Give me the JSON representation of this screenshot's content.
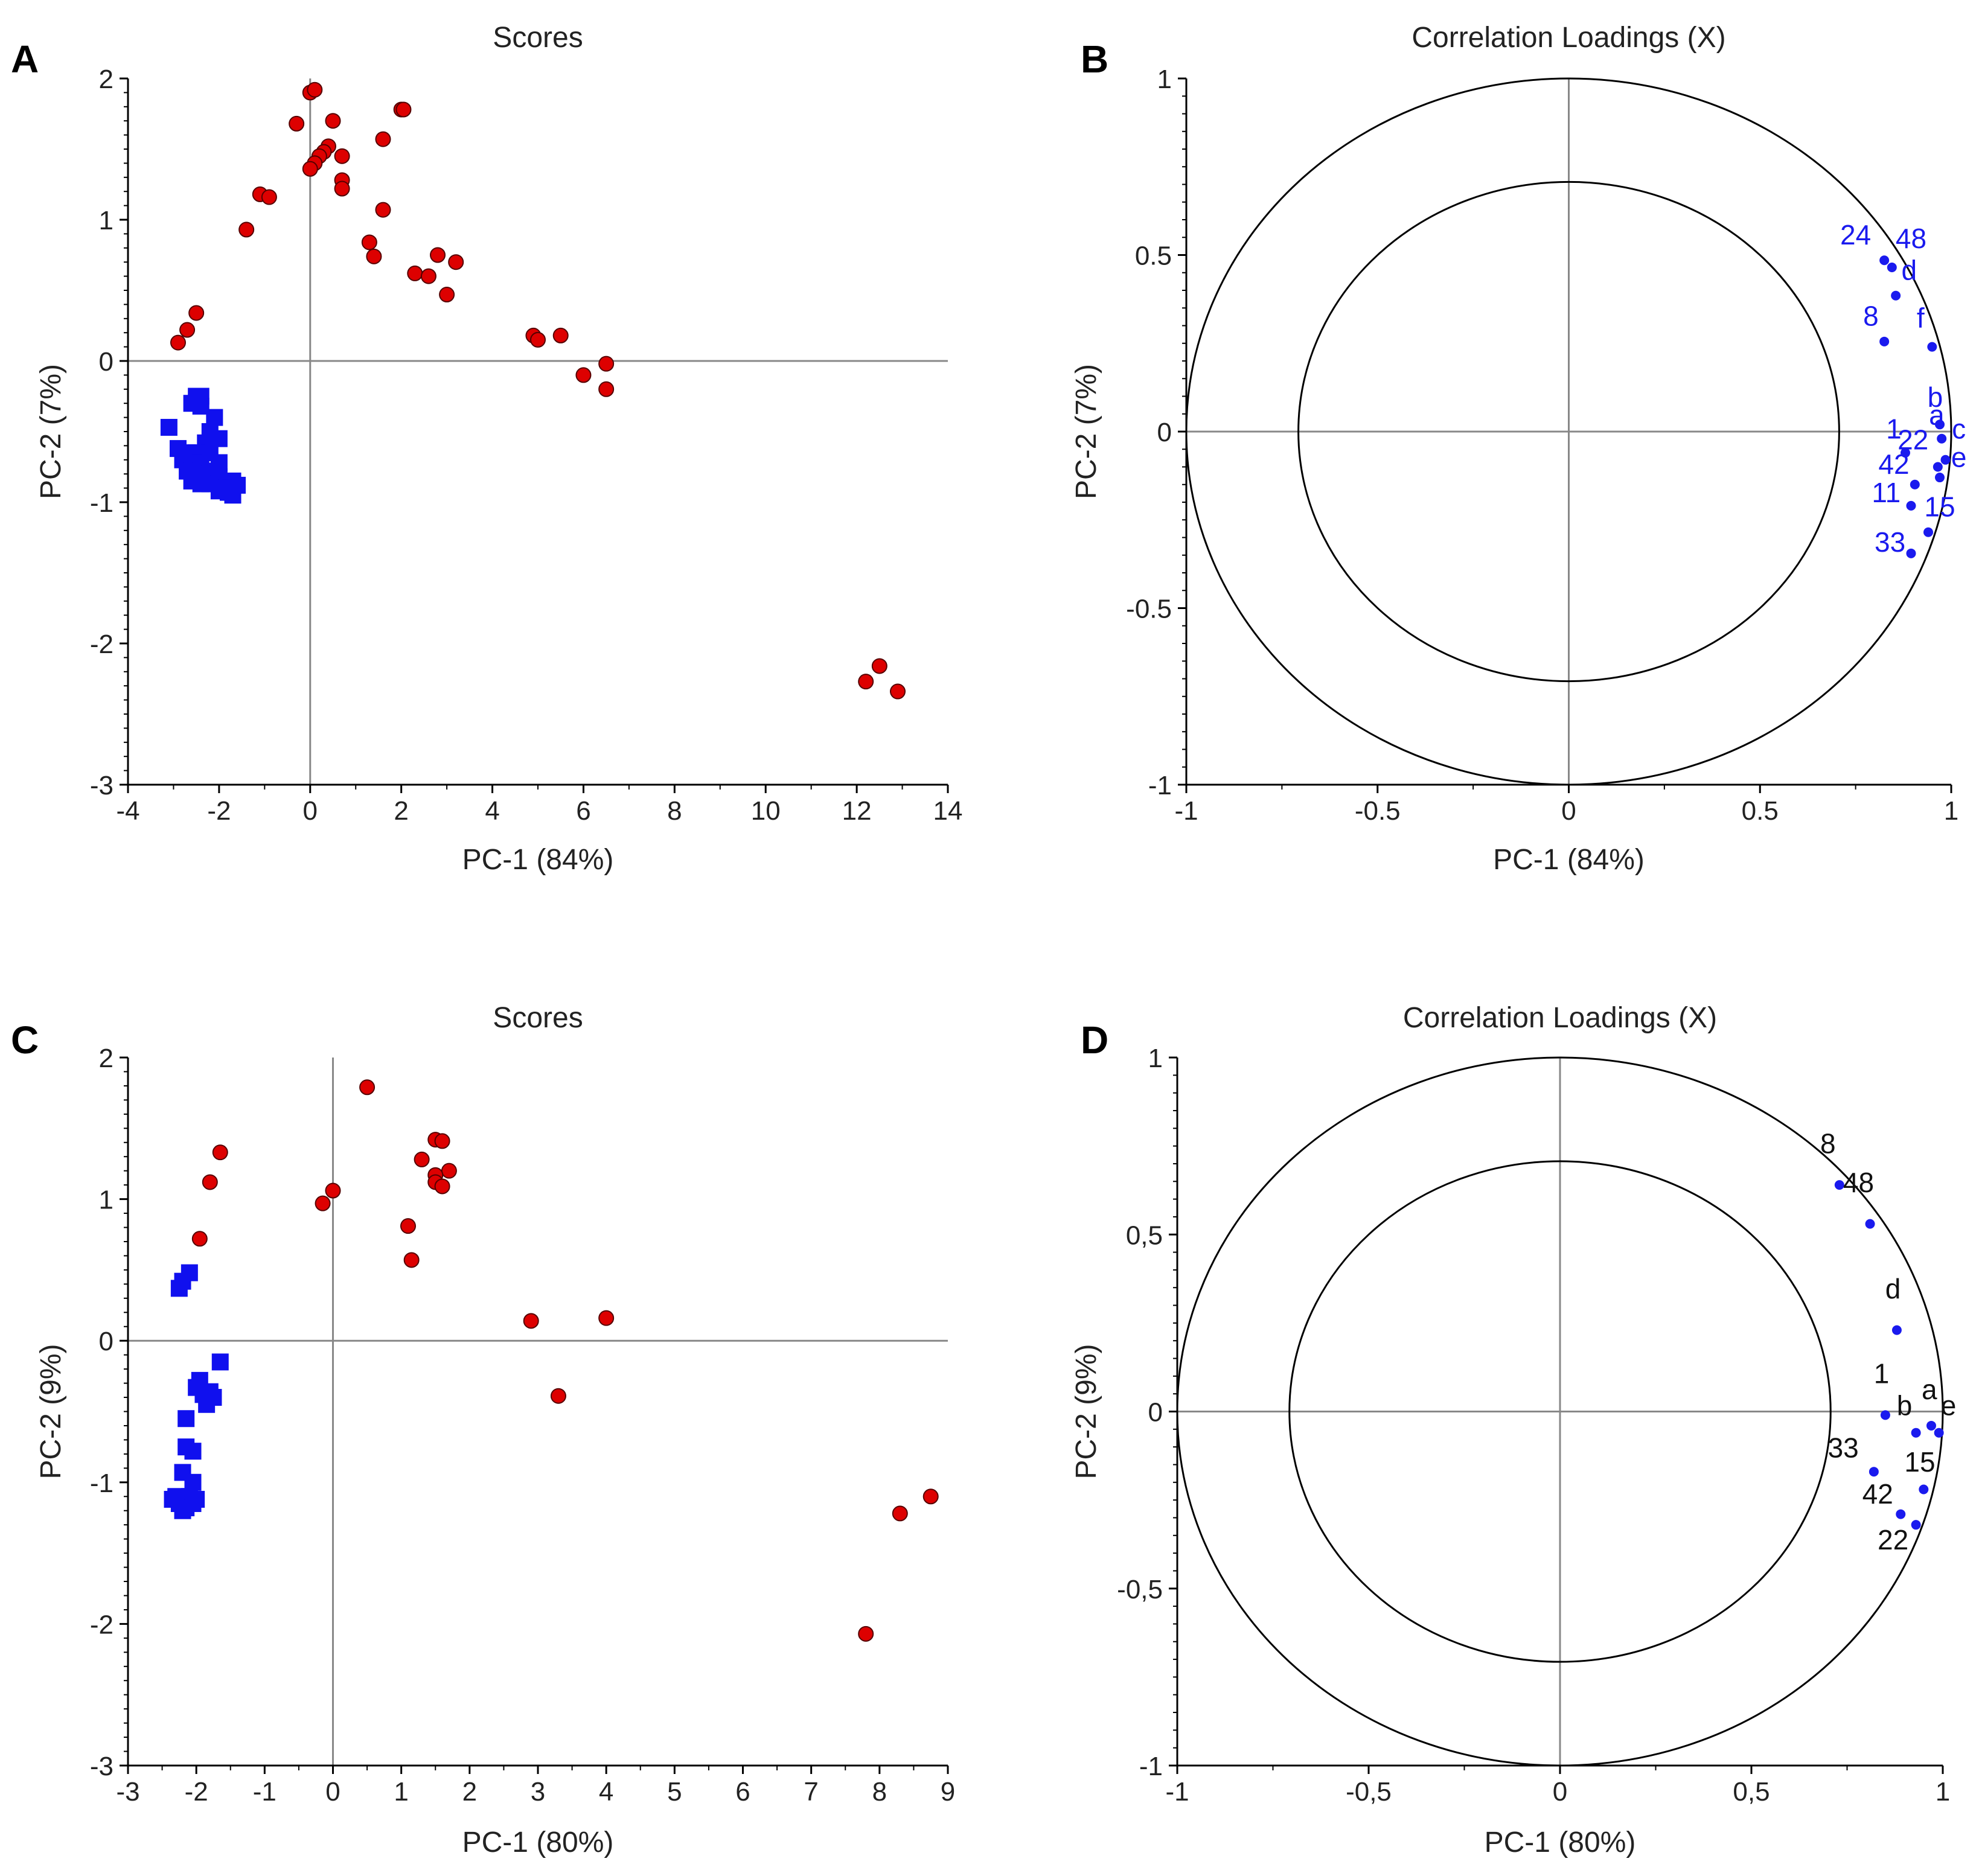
{
  "colors": {
    "group_red": "#dd0000",
    "group_blue": "#1010ee",
    "loading_blue": "#1a1aee",
    "label_blue": "#1a1aee",
    "label_black": "#111111",
    "axis": "#000000",
    "zero_line": "#888888"
  },
  "panels": [
    {
      "letter": "A"
    },
    {
      "letter": "B"
    },
    {
      "letter": "C"
    },
    {
      "letter": "D"
    }
  ],
  "chart_data": [
    {
      "type": "scatter",
      "title": "Scores",
      "xlabel": "PC-1 (84%)",
      "ylabel": "PC-2 (7%)",
      "xlim": [
        -4,
        14
      ],
      "ylim": [
        -3,
        2
      ],
      "xticks": [
        -4,
        -2,
        0,
        2,
        4,
        6,
        8,
        10,
        12,
        14
      ],
      "yticks": [
        -3,
        -2,
        -1,
        0,
        1,
        2
      ],
      "tick_labels_x": [
        "-4",
        "-2",
        "0",
        "2",
        "4",
        "6",
        "8",
        "10",
        "12",
        "14"
      ],
      "tick_labels_y": [
        "-3",
        "-2",
        "-1",
        "0",
        "1",
        "2"
      ],
      "series": [
        {
          "marker": "circle",
          "color": "#dd0000",
          "points": [
            [
              0.0,
              1.9
            ],
            [
              0.1,
              1.92
            ],
            [
              -0.3,
              1.68
            ],
            [
              0.5,
              1.7
            ],
            [
              0.4,
              1.52
            ],
            [
              0.3,
              1.48
            ],
            [
              0.2,
              1.45
            ],
            [
              0.7,
              1.45
            ],
            [
              0.1,
              1.4
            ],
            [
              0.0,
              1.36
            ],
            [
              0.7,
              1.28
            ],
            [
              0.7,
              1.22
            ],
            [
              1.6,
              1.57
            ],
            [
              2.0,
              1.78
            ],
            [
              2.05,
              1.78
            ],
            [
              -1.1,
              1.18
            ],
            [
              -0.9,
              1.16
            ],
            [
              -1.4,
              0.93
            ],
            [
              1.6,
              1.07
            ],
            [
              1.3,
              0.84
            ],
            [
              1.4,
              0.74
            ],
            [
              2.8,
              0.75
            ],
            [
              3.2,
              0.7
            ],
            [
              2.3,
              0.62
            ],
            [
              2.6,
              0.6
            ],
            [
              3.0,
              0.47
            ],
            [
              -2.5,
              0.34
            ],
            [
              -2.7,
              0.22
            ],
            [
              -2.9,
              0.13
            ],
            [
              4.9,
              0.18
            ],
            [
              5.0,
              0.15
            ],
            [
              5.5,
              0.18
            ],
            [
              6.0,
              -0.1
            ],
            [
              6.5,
              -0.02
            ],
            [
              6.5,
              -0.2
            ],
            [
              12.2,
              -2.27
            ],
            [
              12.5,
              -2.16
            ],
            [
              12.9,
              -2.34
            ]
          ]
        },
        {
          "marker": "square",
          "color": "#1010ee",
          "points": [
            [
              -3.1,
              -0.47
            ],
            [
              -2.5,
              -0.25
            ],
            [
              -2.4,
              -0.25
            ],
            [
              -2.6,
              -0.3
            ],
            [
              -2.4,
              -0.32
            ],
            [
              -2.1,
              -0.4
            ],
            [
              -2.2,
              -0.5
            ],
            [
              -2.0,
              -0.55
            ],
            [
              -2.3,
              -0.58
            ],
            [
              -2.9,
              -0.62
            ],
            [
              -2.7,
              -0.65
            ],
            [
              -2.5,
              -0.65
            ],
            [
              -2.2,
              -0.65
            ],
            [
              -2.8,
              -0.7
            ],
            [
              -2.6,
              -0.72
            ],
            [
              -2.4,
              -0.72
            ],
            [
              -2.0,
              -0.72
            ],
            [
              -2.7,
              -0.78
            ],
            [
              -2.2,
              -0.78
            ],
            [
              -2.5,
              -0.8
            ],
            [
              -2.3,
              -0.82
            ],
            [
              -2.0,
              -0.82
            ],
            [
              -1.7,
              -0.85
            ],
            [
              -2.6,
              -0.85
            ],
            [
              -2.4,
              -0.87
            ],
            [
              -2.2,
              -0.87
            ],
            [
              -1.6,
              -0.88
            ],
            [
              -1.9,
              -0.9
            ],
            [
              -2.0,
              -0.92
            ],
            [
              -1.8,
              -0.93
            ],
            [
              -1.7,
              -0.95
            ],
            [
              -1.75,
              -0.9
            ]
          ]
        }
      ]
    },
    {
      "type": "scatter",
      "title": "Correlation Loadings (X)",
      "xlabel": "PC-1 (84%)",
      "ylabel": "PC-2 (7%)",
      "xlim": [
        -1,
        1
      ],
      "ylim": [
        -1,
        1
      ],
      "xticks": [
        -1,
        -0.5,
        0,
        0.5,
        1
      ],
      "yticks": [
        -1,
        -0.5,
        0,
        0.5,
        1
      ],
      "tick_labels_x": [
        "-1",
        "-0.5",
        "0",
        "0.5",
        "1"
      ],
      "tick_labels_y": [
        "-1",
        "-0.5",
        "0",
        "0.5",
        "1"
      ],
      "circles": [
        1.0,
        0.707
      ],
      "points": [
        {
          "label": "24",
          "x": 0.825,
          "y": 0.485,
          "lx": 0.75,
          "ly": 0.53
        },
        {
          "label": "48",
          "x": 0.845,
          "y": 0.465,
          "lx": 0.895,
          "ly": 0.52
        },
        {
          "label": "d",
          "x": 0.855,
          "y": 0.385,
          "lx": 0.89,
          "ly": 0.43
        },
        {
          "label": "8",
          "x": 0.825,
          "y": 0.255,
          "lx": 0.79,
          "ly": 0.3
        },
        {
          "label": "f",
          "x": 0.95,
          "y": 0.24,
          "lx": 0.92,
          "ly": 0.295
        },
        {
          "label": "b",
          "x": 0.97,
          "y": 0.02,
          "lx": 0.958,
          "ly": 0.07
        },
        {
          "label": "1",
          "x": 0.88,
          "y": -0.06,
          "lx": 0.85,
          "ly": -0.02
        },
        {
          "label": "a",
          "x": 0.975,
          "y": -0.02,
          "lx": 0.962,
          "ly": 0.02
        },
        {
          "label": "c",
          "x": 0.985,
          "y": -0.08,
          "lx": 1.02,
          "ly": -0.02
        },
        {
          "label": "22",
          "x": 0.965,
          "y": -0.1,
          "lx": 0.9,
          "ly": -0.05
        },
        {
          "label": "e",
          "x": 0.97,
          "y": -0.13,
          "lx": 1.02,
          "ly": -0.1
        },
        {
          "label": "42",
          "x": 0.905,
          "y": -0.15,
          "lx": 0.85,
          "ly": -0.12
        },
        {
          "label": "11",
          "x": 0.895,
          "y": -0.21,
          "lx": 0.83,
          "ly": -0.2
        },
        {
          "label": "15",
          "x": 0.94,
          "y": -0.285,
          "lx": 0.97,
          "ly": -0.24
        },
        {
          "label": "33",
          "x": 0.895,
          "y": -0.345,
          "lx": 0.84,
          "ly": -0.34
        }
      ]
    },
    {
      "type": "scatter",
      "title": "Scores",
      "xlabel": "PC-1 (80%)",
      "ylabel": "PC-2 (9%)",
      "xlim": [
        -3,
        9
      ],
      "ylim": [
        -3,
        2
      ],
      "xticks": [
        -3,
        -2,
        -1,
        0,
        1,
        2,
        3,
        4,
        5,
        6,
        7,
        8,
        9
      ],
      "yticks": [
        -3,
        -2,
        -1,
        0,
        1,
        2
      ],
      "tick_labels_x": [
        "-3",
        "-2",
        "-1",
        "0",
        "1",
        "2",
        "3",
        "4",
        "5",
        "6",
        "7",
        "8",
        "9"
      ],
      "tick_labels_y": [
        "-3",
        "-2",
        "-1",
        "0",
        "1",
        "2"
      ],
      "series": [
        {
          "marker": "circle",
          "color": "#dd0000",
          "points": [
            [
              -1.65,
              1.33
            ],
            [
              -1.8,
              1.12
            ],
            [
              -1.95,
              0.72
            ],
            [
              0.5,
              1.79
            ],
            [
              0.0,
              1.06
            ],
            [
              -0.15,
              0.97
            ],
            [
              1.5,
              1.42
            ],
            [
              1.6,
              1.41
            ],
            [
              1.3,
              1.28
            ],
            [
              1.7,
              1.2
            ],
            [
              1.5,
              1.17
            ],
            [
              1.5,
              1.12
            ],
            [
              1.6,
              1.09
            ],
            [
              1.1,
              0.81
            ],
            [
              1.15,
              0.57
            ],
            [
              2.9,
              0.14
            ],
            [
              4.0,
              0.16
            ],
            [
              3.3,
              -0.39
            ],
            [
              7.8,
              -2.07
            ],
            [
              8.3,
              -1.22
            ],
            [
              8.75,
              -1.1
            ]
          ]
        },
        {
          "marker": "square",
          "color": "#1010ee",
          "points": [
            [
              -2.1,
              0.48
            ],
            [
              -2.2,
              0.42
            ],
            [
              -2.25,
              0.37
            ],
            [
              -1.65,
              -0.15
            ],
            [
              -1.95,
              -0.28
            ],
            [
              -2.0,
              -0.33
            ],
            [
              -1.8,
              -0.36
            ],
            [
              -1.9,
              -0.38
            ],
            [
              -1.75,
              -0.4
            ],
            [
              -1.85,
              -0.45
            ],
            [
              -2.15,
              -0.55
            ],
            [
              -2.15,
              -0.75
            ],
            [
              -2.05,
              -0.78
            ],
            [
              -2.2,
              -0.93
            ],
            [
              -2.05,
              -1.0
            ],
            [
              -2.3,
              -1.1
            ],
            [
              -2.1,
              -1.1
            ],
            [
              -2.0,
              -1.12
            ],
            [
              -2.25,
              -1.15
            ],
            [
              -2.15,
              -1.18
            ],
            [
              -2.05,
              -1.15
            ],
            [
              -2.2,
              -1.2
            ],
            [
              -2.35,
              -1.12
            ]
          ]
        }
      ]
    },
    {
      "type": "scatter",
      "title": "Correlation Loadings (X)",
      "xlabel": "PC-1 (80%)",
      "ylabel": "PC-2 (9%)",
      "xlim": [
        -1,
        1
      ],
      "ylim": [
        -1,
        1
      ],
      "xticks": [
        -1,
        -0.5,
        0,
        0.5,
        1
      ],
      "yticks": [
        -1,
        -0.5,
        0,
        0.5,
        1
      ],
      "tick_labels_x": [
        "-1",
        "-0,5",
        "0",
        "0,5",
        "1"
      ],
      "tick_labels_y": [
        "-1",
        "-0,5",
        "0",
        "0,5",
        "1"
      ],
      "circles": [
        1.0,
        0.707
      ],
      "points": [
        {
          "label": "8",
          "x": 0.73,
          "y": 0.64,
          "lx": 0.7,
          "ly": 0.73
        },
        {
          "label": "48",
          "x": 0.81,
          "y": 0.53,
          "lx": 0.78,
          "ly": 0.62
        },
        {
          "label": "d",
          "x": 0.88,
          "y": 0.23,
          "lx": 0.87,
          "ly": 0.32
        },
        {
          "label": "1",
          "x": 0.85,
          "y": -0.01,
          "lx": 0.84,
          "ly": 0.08
        },
        {
          "label": "a",
          "x": 0.97,
          "y": -0.04,
          "lx": 0.965,
          "ly": 0.035
        },
        {
          "label": "b",
          "x": 0.93,
          "y": -0.06,
          "lx": 0.9,
          "ly": -0.01
        },
        {
          "label": "e",
          "x": 0.99,
          "y": -0.06,
          "lx": 1.015,
          "ly": -0.01
        },
        {
          "label": "33",
          "x": 0.82,
          "y": -0.17,
          "lx": 0.74,
          "ly": -0.13
        },
        {
          "label": "15",
          "x": 0.95,
          "y": -0.22,
          "lx": 0.94,
          "ly": -0.17
        },
        {
          "label": "42",
          "x": 0.89,
          "y": -0.29,
          "lx": 0.83,
          "ly": -0.26
        },
        {
          "label": "22",
          "x": 0.93,
          "y": -0.32,
          "lx": 0.87,
          "ly": -0.39
        }
      ]
    }
  ]
}
